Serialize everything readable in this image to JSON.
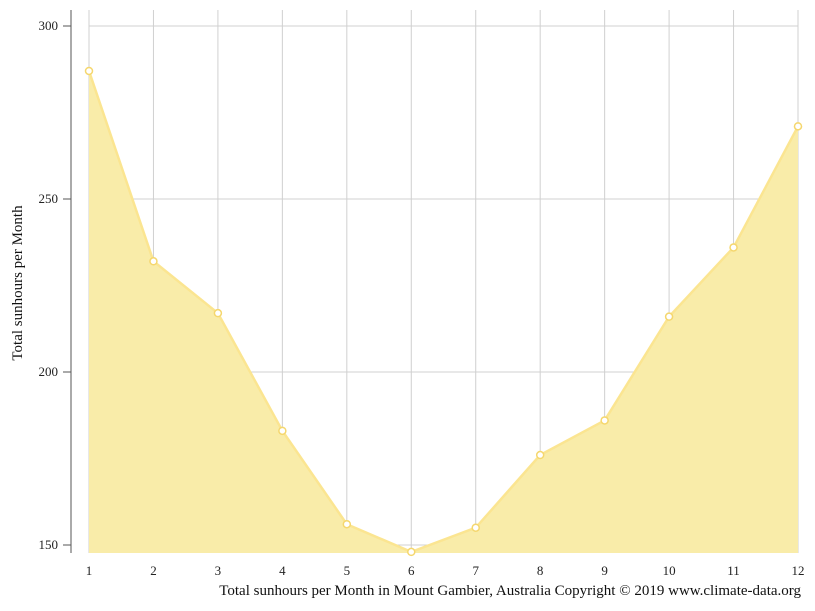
{
  "chart_data": {
    "type": "area",
    "title": "Total sunhours per Month in Mount Gambier, Australia Copyright © 2019 www.climate-data.org",
    "xlabel": "",
    "ylabel": "Total sunhours per Month",
    "x": [
      1,
      2,
      3,
      4,
      5,
      6,
      7,
      8,
      9,
      10,
      11,
      12
    ],
    "values": [
      287,
      232,
      217,
      183,
      156,
      148,
      155,
      176,
      186,
      216,
      236,
      271
    ],
    "ylim": [
      148,
      305
    ],
    "yticks": [
      150,
      200,
      250,
      300
    ],
    "grid": true,
    "colors": {
      "fill": "#f9eca9",
      "line": "#fbe591",
      "marker_fill": "#ffffff",
      "marker_stroke": "#f5d76e",
      "grid": "#d0d0d0",
      "axis": "#555555"
    }
  }
}
